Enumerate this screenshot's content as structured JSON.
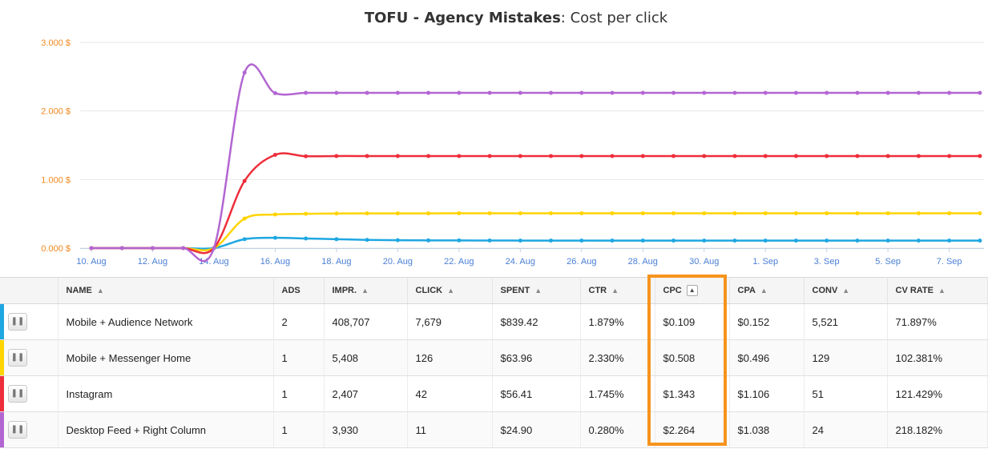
{
  "header": {
    "title_bold": "TOFU - Agency Mistakes",
    "title_rest": ": Cost per click"
  },
  "chart_data": {
    "type": "line",
    "title": "TOFU - Agency Mistakes: Cost per click",
    "y_tick_labels": [
      "0.000 $",
      "1.000 $",
      "2.000 $",
      "3.000 $"
    ],
    "y_ticks": [
      0,
      1,
      2,
      3
    ],
    "ylim": [
      0,
      3
    ],
    "x_tick_labels": [
      "10. Aug",
      "12. Aug",
      "14. Aug",
      "16. Aug",
      "18. Aug",
      "20. Aug",
      "22. Aug",
      "24. Aug",
      "26. Aug",
      "28. Aug",
      "30. Aug",
      "1. Sep",
      "3. Sep",
      "5. Sep",
      "7. Sep"
    ],
    "x": [
      "10. Aug",
      "11. Aug",
      "12. Aug",
      "13. Aug",
      "14. Aug",
      "15. Aug",
      "16. Aug",
      "17. Aug",
      "18. Aug",
      "19. Aug",
      "20. Aug",
      "21. Aug",
      "22. Aug",
      "23. Aug",
      "24. Aug",
      "25. Aug",
      "26. Aug",
      "27. Aug",
      "28. Aug",
      "29. Aug",
      "30. Aug",
      "31. Aug",
      "1. Sep",
      "2. Sep",
      "3. Sep",
      "4. Sep",
      "5. Sep",
      "6. Sep",
      "7. Sep",
      "8. Sep"
    ],
    "grid": true,
    "series": [
      {
        "color": "#1ea7e1",
        "values": [
          0,
          0,
          0,
          0,
          0,
          0.13,
          0.15,
          0.14,
          0.13,
          0.12,
          0.115,
          0.113,
          0.112,
          0.111,
          0.11,
          0.11,
          0.11,
          0.11,
          0.11,
          0.11,
          0.109,
          0.109,
          0.109,
          0.109,
          0.109,
          0.109,
          0.109,
          0.109,
          0.109,
          0.109
        ]
      },
      {
        "color": "#ffd400",
        "values": [
          0,
          0,
          0,
          0,
          0,
          0.43,
          0.49,
          0.5,
          0.505,
          0.506,
          0.507,
          0.507,
          0.508,
          0.508,
          0.508,
          0.508,
          0.508,
          0.508,
          0.508,
          0.508,
          0.508,
          0.508,
          0.508,
          0.508,
          0.508,
          0.508,
          0.508,
          0.508,
          0.508,
          0.508
        ]
      },
      {
        "color": "#ee2e3b",
        "values": [
          0,
          0,
          0,
          0,
          0,
          0.98,
          1.36,
          1.34,
          1.343,
          1.343,
          1.343,
          1.343,
          1.343,
          1.343,
          1.343,
          1.343,
          1.343,
          1.343,
          1.343,
          1.343,
          1.343,
          1.343,
          1.343,
          1.343,
          1.343,
          1.343,
          1.343,
          1.343,
          1.343,
          1.343
        ]
      },
      {
        "color": "#b266d1",
        "values": [
          0,
          0,
          0,
          0,
          0,
          2.56,
          2.26,
          2.264,
          2.264,
          2.264,
          2.264,
          2.264,
          2.264,
          2.264,
          2.264,
          2.264,
          2.264,
          2.264,
          2.264,
          2.264,
          2.264,
          2.264,
          2.264,
          2.264,
          2.264,
          2.264,
          2.264,
          2.264,
          2.264,
          2.264
        ]
      }
    ]
  },
  "table": {
    "columns": [
      "NAME",
      "ADS",
      "IMPR.",
      "CLICK",
      "SPENT",
      "CTR",
      "CPC",
      "CPA",
      "CONV",
      "CV RATE"
    ],
    "rows": [
      {
        "color": "#1ea7e1",
        "name": "Mobile + Audience Network",
        "ads": "2",
        "impr": "408,707",
        "click": "7,679",
        "spent": "$839.42",
        "ctr": "1.879%",
        "cpc": "$0.109",
        "cpa": "$0.152",
        "conv": "5,521",
        "cvrate": "71.897%"
      },
      {
        "color": "#ffd400",
        "name": "Mobile + Messenger Home",
        "ads": "1",
        "impr": "5,408",
        "click": "126",
        "spent": "$63.96",
        "ctr": "2.330%",
        "cpc": "$0.508",
        "cpa": "$0.496",
        "conv": "129",
        "cvrate": "102.381%"
      },
      {
        "color": "#ee2e3b",
        "name": "Instagram",
        "ads": "1",
        "impr": "2,407",
        "click": "42",
        "spent": "$56.41",
        "ctr": "1.745%",
        "cpc": "$1.343",
        "cpa": "$1.106",
        "conv": "51",
        "cvrate": "121.429%"
      },
      {
        "color": "#b266d1",
        "name": "Desktop Feed + Right Column",
        "ads": "1",
        "impr": "3,930",
        "click": "11",
        "spent": "$24.90",
        "ctr": "0.280%",
        "cpc": "$2.264",
        "cpa": "$1.038",
        "conv": "24",
        "cvrate": "218.182%"
      }
    ]
  },
  "icons": {
    "pause": "pause-icon",
    "sort": "sort-icon",
    "sort_asc": "sort-ascending-icon"
  },
  "accent_colors": {
    "highlight": "#f7931e",
    "axis_y": "#f0871b",
    "axis_x": "#4a7fd6"
  }
}
